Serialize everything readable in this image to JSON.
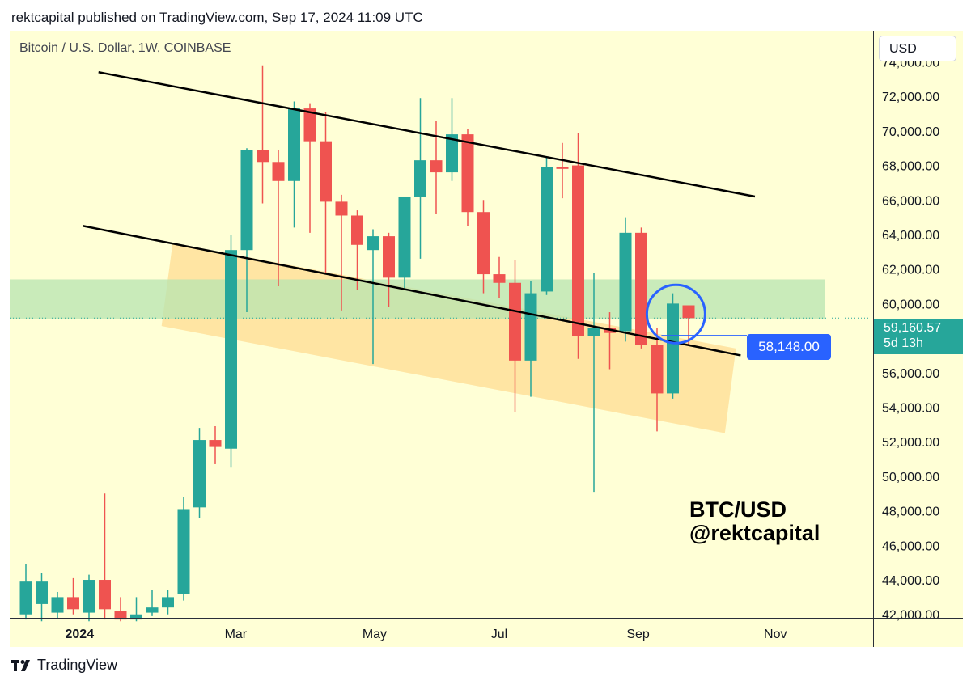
{
  "header": {
    "published_by": "rektcapital published on TradingView.com, Sep 17, 2024 11:09 UTC"
  },
  "plot_title": "Bitcoin / U.S. Dollar, 1W, COINBASE",
  "currency_button": "USD",
  "current_price": {
    "value": "59,160.57",
    "countdown": "5d 13h"
  },
  "callout": {
    "label": "58,148.00"
  },
  "watermark": {
    "line1": "BTC/USD",
    "line2": "@rektcapital"
  },
  "footer": {
    "brand": "TradingView"
  },
  "colors": {
    "up": "#26a69a",
    "down": "#ef5350",
    "background": "#ffffd6",
    "green_zone": "#b7e4b0",
    "orange_zone": "#ffcf7a",
    "callout": "#2962ff"
  },
  "chart_data": {
    "type": "candlestick",
    "interval": "1W",
    "ylim": [
      41800,
      75800
    ],
    "y_ticks": [
      "74,000.00",
      "72,000.00",
      "70,000.00",
      "68,000.00",
      "66,000.00",
      "64,000.00",
      "62,000.00",
      "60,000.00",
      "58,000.00",
      "56,000.00",
      "54,000.00",
      "52,000.00",
      "50,000.00",
      "48,000.00",
      "46,000.00",
      "44,000.00",
      "42,000.00"
    ],
    "y_tick_values": [
      74000,
      72000,
      70000,
      68000,
      66000,
      64000,
      62000,
      60000,
      58000,
      56000,
      54000,
      52000,
      50000,
      48000,
      46000,
      44000,
      42000
    ],
    "x_ticks": [
      {
        "label": "2024",
        "bold": true,
        "index": 3.4
      },
      {
        "label": "Mar",
        "bold": false,
        "index": 13.3
      },
      {
        "label": "May",
        "bold": false,
        "index": 22.1
      },
      {
        "label": "Jul",
        "bold": false,
        "index": 30.0
      },
      {
        "label": "Sep",
        "bold": false,
        "index": 38.8
      },
      {
        "label": "Nov",
        "bold": false,
        "index": 47.5
      }
    ],
    "candles": [
      {
        "o": 42000,
        "h": 44900,
        "l": 41700,
        "c": 43900
      },
      {
        "o": 42600,
        "h": 44400,
        "l": 41600,
        "c": 43900
      },
      {
        "o": 42100,
        "h": 43300,
        "l": 41800,
        "c": 43000
      },
      {
        "o": 43000,
        "h": 44100,
        "l": 42000,
        "c": 42300
      },
      {
        "o": 42100,
        "h": 44300,
        "l": 41600,
        "c": 44000
      },
      {
        "o": 44000,
        "h": 49000,
        "l": 41700,
        "c": 42300
      },
      {
        "o": 42200,
        "h": 43000,
        "l": 41600,
        "c": 41700
      },
      {
        "o": 41700,
        "h": 43000,
        "l": 41600,
        "c": 42000
      },
      {
        "o": 42100,
        "h": 43400,
        "l": 41900,
        "c": 42400
      },
      {
        "o": 42400,
        "h": 43400,
        "l": 42000,
        "c": 43000
      },
      {
        "o": 43200,
        "h": 48800,
        "l": 42800,
        "c": 48100
      },
      {
        "o": 48200,
        "h": 52800,
        "l": 47600,
        "c": 52100
      },
      {
        "o": 52100,
        "h": 52900,
        "l": 50700,
        "c": 51700
      },
      {
        "o": 51600,
        "h": 64000,
        "l": 50500,
        "c": 63100
      },
      {
        "o": 63100,
        "h": 69000,
        "l": 59500,
        "c": 68900
      },
      {
        "o": 68900,
        "h": 73800,
        "l": 65800,
        "c": 68200
      },
      {
        "o": 68200,
        "h": 68900,
        "l": 61000,
        "c": 67100
      },
      {
        "o": 67100,
        "h": 71700,
        "l": 64400,
        "c": 71300
      },
      {
        "o": 71300,
        "h": 71600,
        "l": 64100,
        "c": 69400
      },
      {
        "o": 69400,
        "h": 71100,
        "l": 61700,
        "c": 65900
      },
      {
        "o": 65900,
        "h": 66300,
        "l": 59600,
        "c": 65100
      },
      {
        "o": 65100,
        "h": 65400,
        "l": 60800,
        "c": 63400
      },
      {
        "o": 63100,
        "h": 64300,
        "l": 56500,
        "c": 63900
      },
      {
        "o": 63900,
        "h": 64100,
        "l": 59800,
        "c": 61500
      },
      {
        "o": 61500,
        "h": 66200,
        "l": 60900,
        "c": 66200
      },
      {
        "o": 66200,
        "h": 71900,
        "l": 62600,
        "c": 68300
      },
      {
        "o": 68300,
        "h": 70600,
        "l": 65200,
        "c": 67600
      },
      {
        "o": 67600,
        "h": 71900,
        "l": 67100,
        "c": 69800
      },
      {
        "o": 69800,
        "h": 70100,
        "l": 64500,
        "c": 65300
      },
      {
        "o": 65300,
        "h": 66000,
        "l": 60600,
        "c": 61700
      },
      {
        "o": 61700,
        "h": 62700,
        "l": 60300,
        "c": 61200
      },
      {
        "o": 61200,
        "h": 62500,
        "l": 53700,
        "c": 56700
      },
      {
        "o": 56700,
        "h": 61300,
        "l": 54600,
        "c": 60600
      },
      {
        "o": 60700,
        "h": 68500,
        "l": 60500,
        "c": 67900
      },
      {
        "o": 67900,
        "h": 69300,
        "l": 66100,
        "c": 67800
      },
      {
        "o": 68000,
        "h": 69900,
        "l": 56800,
        "c": 58100
      },
      {
        "o": 58100,
        "h": 61800,
        "l": 49100,
        "c": 58600
      },
      {
        "o": 58600,
        "h": 59500,
        "l": 56200,
        "c": 58300
      },
      {
        "o": 58400,
        "h": 65000,
        "l": 57800,
        "c": 64100
      },
      {
        "o": 64100,
        "h": 64400,
        "l": 57400,
        "c": 57600
      },
      {
        "o": 57600,
        "h": 58600,
        "l": 52600,
        "c": 54800
      },
      {
        "o": 54800,
        "h": 60600,
        "l": 54500,
        "c": 60000
      },
      {
        "o": 59900,
        "h": 59900,
        "l": 57600,
        "c": 59160
      }
    ],
    "annotations": {
      "upper_trendline": [
        {
          "i": 4.6,
          "y": 73400
        },
        {
          "i": 46.2,
          "y": 66200
        }
      ],
      "lower_trendline": [
        {
          "i": 3.6,
          "y": 64500
        },
        {
          "i": 45.3,
          "y": 57000
        }
      ],
      "green_zone": {
        "y_from": 59100,
        "y_to": 61400
      },
      "orange_channel": [
        {
          "i": 9.3,
          "y": 63500
        },
        {
          "i": 45.0,
          "y": 57400
        },
        {
          "i": 44.3,
          "y": 52500
        },
        {
          "i": 8.6,
          "y": 58700
        }
      ],
      "circle": {
        "i": 41.2,
        "y": 59400
      },
      "price_line": 59160.57
    }
  }
}
